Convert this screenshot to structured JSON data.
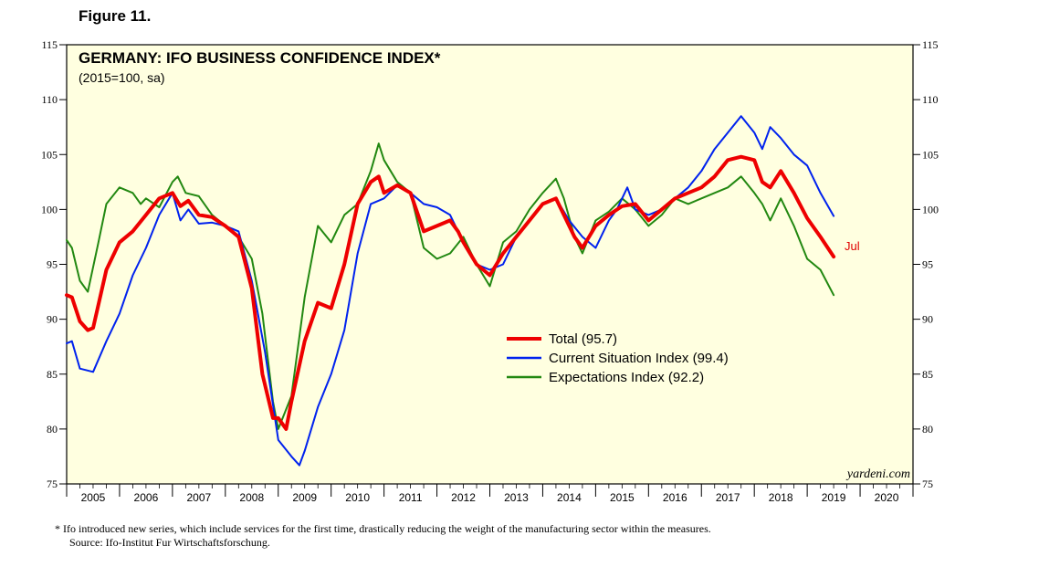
{
  "figure_label": "Figure 11.",
  "footnote": {
    "note": "*   Ifo introduced new series, which include services for the first time, drastically reducing the weight of the manufacturing sector within the measures.",
    "source": "Source: Ifo-Institut Fur Wirtschaftsforschung."
  },
  "colors": {
    "panel_bg": "#ffffe0",
    "total": "#ee0000",
    "current": "#0022ee",
    "expectations": "#228811"
  },
  "chart_data": {
    "type": "line",
    "title": "GERMANY: IFO BUSINESS CONFIDENCE INDEX*",
    "subtitle": "(2015=100, sa)",
    "watermark": "yardeni.com",
    "end_label": "Jul",
    "ylim": [
      75,
      115
    ],
    "yticks": [
      75,
      80,
      85,
      90,
      95,
      100,
      105,
      110,
      115
    ],
    "xlim": [
      2005,
      2021
    ],
    "year_labels": [
      "2005",
      "2006",
      "2007",
      "2008",
      "2009",
      "2010",
      "2011",
      "2012",
      "2013",
      "2014",
      "2015",
      "2016",
      "2017",
      "2018",
      "2019",
      "2020"
    ],
    "legend": [
      "Total (95.7)",
      "Current Situation Index (99.4)",
      "Expectations Index (92.2)"
    ],
    "series": [
      {
        "name": "Total",
        "x": [
          2005.0,
          2005.1,
          2005.25,
          2005.4,
          2005.5,
          2005.75,
          2006.0,
          2006.25,
          2006.5,
          2006.75,
          2007.0,
          2007.15,
          2007.3,
          2007.5,
          2007.75,
          2008.0,
          2008.25,
          2008.5,
          2008.7,
          2008.9,
          2009.0,
          2009.15,
          2009.25,
          2009.5,
          2009.75,
          2010.0,
          2010.25,
          2010.5,
          2010.75,
          2010.9,
          2011.0,
          2011.25,
          2011.5,
          2011.75,
          2012.0,
          2012.25,
          2012.4,
          2012.5,
          2012.75,
          2013.0,
          2013.25,
          2013.5,
          2013.75,
          2014.0,
          2014.25,
          2014.4,
          2014.6,
          2014.75,
          2015.0,
          2015.25,
          2015.5,
          2015.75,
          2016.0,
          2016.25,
          2016.5,
          2016.75,
          2017.0,
          2017.25,
          2017.5,
          2017.75,
          2018.0,
          2018.15,
          2018.3,
          2018.5,
          2018.75,
          2019.0,
          2019.25,
          2019.5
        ],
        "values": [
          92.2,
          92.0,
          89.8,
          89.0,
          89.2,
          94.5,
          97.0,
          98.0,
          99.5,
          101.0,
          101.5,
          100.3,
          100.8,
          99.5,
          99.3,
          98.5,
          97.5,
          92.8,
          85.0,
          81.0,
          81.0,
          80.0,
          82.5,
          88.0,
          91.5,
          91.0,
          95.0,
          100.5,
          102.5,
          103.0,
          101.5,
          102.2,
          101.5,
          98.0,
          98.5,
          99.0,
          98.0,
          97.0,
          95.0,
          94.0,
          96.0,
          97.5,
          99.0,
          100.5,
          101.0,
          99.5,
          97.5,
          96.5,
          98.5,
          99.5,
          100.3,
          100.5,
          99.0,
          100.0,
          101.0,
          101.5,
          102.0,
          103.0,
          104.5,
          104.8,
          104.5,
          102.5,
          102.0,
          103.5,
          101.5,
          99.2,
          97.5,
          95.7
        ]
      },
      {
        "name": "Current Situation Index",
        "x": [
          2005.0,
          2005.1,
          2005.25,
          2005.5,
          2005.75,
          2006.0,
          2006.25,
          2006.5,
          2006.75,
          2007.0,
          2007.15,
          2007.3,
          2007.5,
          2007.75,
          2008.0,
          2008.25,
          2008.5,
          2008.75,
          2009.0,
          2009.25,
          2009.4,
          2009.5,
          2009.75,
          2010.0,
          2010.25,
          2010.5,
          2010.75,
          2011.0,
          2011.25,
          2011.5,
          2011.75,
          2012.0,
          2012.25,
          2012.5,
          2012.75,
          2013.0,
          2013.25,
          2013.5,
          2013.75,
          2014.0,
          2014.25,
          2014.5,
          2014.75,
          2015.0,
          2015.25,
          2015.4,
          2015.6,
          2015.75,
          2016.0,
          2016.25,
          2016.5,
          2016.75,
          2017.0,
          2017.25,
          2017.5,
          2017.75,
          2018.0,
          2018.15,
          2018.3,
          2018.5,
          2018.75,
          2019.0,
          2019.25,
          2019.5
        ],
        "values": [
          87.8,
          88.0,
          85.5,
          85.2,
          88.0,
          90.5,
          94.0,
          96.5,
          99.5,
          101.5,
          99.0,
          100.0,
          98.7,
          98.8,
          98.5,
          98.0,
          93.5,
          87.0,
          79.0,
          77.5,
          76.7,
          78.0,
          82.0,
          85.0,
          89.0,
          96.0,
          100.5,
          101.0,
          102.2,
          101.5,
          100.5,
          100.2,
          99.5,
          97.0,
          95.0,
          94.5,
          95.0,
          97.5,
          99.0,
          100.5,
          101.0,
          99.0,
          97.5,
          96.5,
          99.0,
          100.0,
          102.0,
          100.0,
          99.5,
          100.0,
          101.0,
          102.0,
          103.5,
          105.5,
          107.0,
          108.5,
          107.0,
          105.5,
          107.5,
          106.5,
          105.0,
          104.0,
          101.5,
          99.4
        ]
      },
      {
        "name": "Expectations Index",
        "x": [
          2005.0,
          2005.1,
          2005.25,
          2005.4,
          2005.6,
          2005.75,
          2006.0,
          2006.25,
          2006.4,
          2006.5,
          2006.75,
          2007.0,
          2007.1,
          2007.25,
          2007.5,
          2007.75,
          2008.0,
          2008.25,
          2008.5,
          2008.7,
          2008.9,
          2009.0,
          2009.25,
          2009.5,
          2009.75,
          2010.0,
          2010.25,
          2010.5,
          2010.75,
          2010.9,
          2011.0,
          2011.25,
          2011.5,
          2011.75,
          2012.0,
          2012.25,
          2012.5,
          2012.75,
          2013.0,
          2013.25,
          2013.5,
          2013.75,
          2014.0,
          2014.25,
          2014.4,
          2014.6,
          2014.75,
          2015.0,
          2015.25,
          2015.5,
          2015.75,
          2016.0,
          2016.25,
          2016.5,
          2016.75,
          2017.0,
          2017.25,
          2017.5,
          2017.75,
          2018.0,
          2018.15,
          2018.3,
          2018.5,
          2018.75,
          2019.0,
          2019.25,
          2019.5
        ],
        "values": [
          97.2,
          96.5,
          93.5,
          92.5,
          97.0,
          100.5,
          102.0,
          101.5,
          100.5,
          101.0,
          100.2,
          102.5,
          103.0,
          101.5,
          101.2,
          99.5,
          98.5,
          97.5,
          95.5,
          90.5,
          82.5,
          80.0,
          83.0,
          92.0,
          98.5,
          97.0,
          99.5,
          100.5,
          103.5,
          106.0,
          104.5,
          102.5,
          101.5,
          96.5,
          95.5,
          96.0,
          97.5,
          95.0,
          93.0,
          97.0,
          98.0,
          100.0,
          101.5,
          102.8,
          101.0,
          97.5,
          96.0,
          99.0,
          99.8,
          101.0,
          100.0,
          98.5,
          99.5,
          101.0,
          100.5,
          101.0,
          101.5,
          102.0,
          103.0,
          101.5,
          100.5,
          99.0,
          101.0,
          98.5,
          95.5,
          94.5,
          92.2
        ]
      }
    ]
  }
}
